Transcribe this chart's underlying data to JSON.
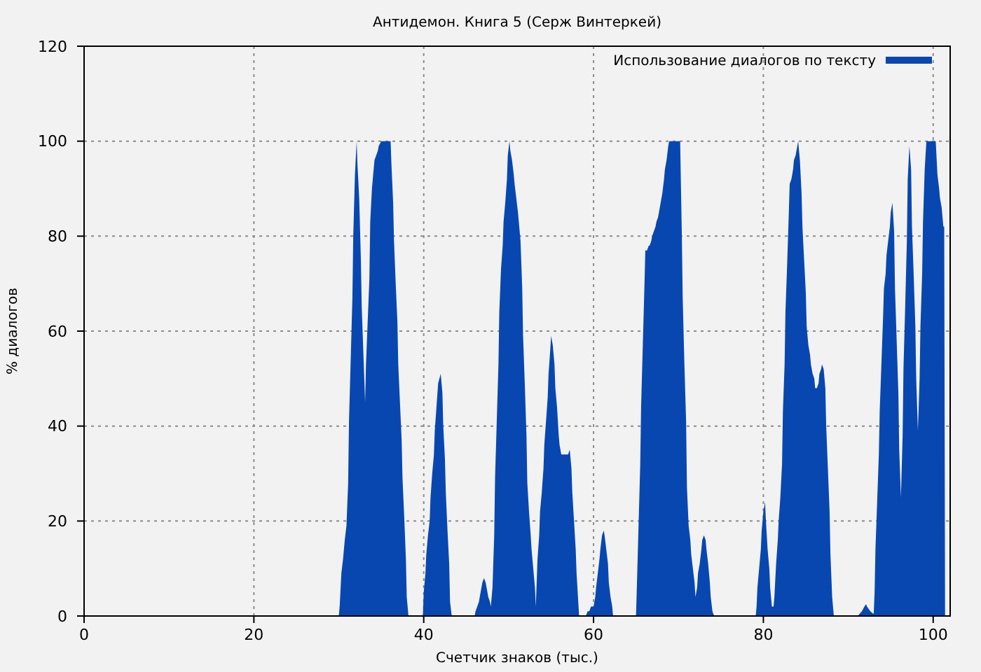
{
  "chart_data": {
    "type": "area",
    "title": "Антидемон. Книга 5 (Серж Винтеркей)",
    "xlabel": "Счетчик знаков (тыс.)",
    "ylabel": "% диалогов",
    "xlim": [
      0,
      102
    ],
    "ylim": [
      0,
      120
    ],
    "xticks": [
      0,
      20,
      40,
      60,
      80,
      100
    ],
    "yticks": [
      0,
      20,
      40,
      60,
      80,
      100,
      120
    ],
    "grid": true,
    "legend": "top right",
    "series": [
      {
        "name": "Использование диалогов по тексту",
        "color": "#0847af",
        "x": [
          30.0,
          30.1,
          30.3,
          30.5,
          30.7,
          30.9,
          31.1,
          31.2,
          31.4,
          31.6,
          31.7,
          31.9,
          32.1,
          32.2,
          32.4,
          32.6,
          32.7,
          32.9,
          33.1,
          33.2,
          33.4,
          33.6,
          33.7,
          33.9,
          34.1,
          34.2,
          34.4,
          34.6,
          34.7,
          35.0,
          36.1,
          36.2,
          36.4,
          36.5,
          36.7,
          36.9,
          37.0,
          37.2,
          37.4,
          37.5,
          37.7,
          37.9,
          38.0,
          38.2,
          39.9,
          40.0,
          40.2,
          40.3,
          40.5,
          40.7,
          40.8,
          41.0,
          41.2,
          41.3,
          41.5,
          41.7,
          42.0,
          42.2,
          42.3,
          42.5,
          42.6,
          42.8,
          43.0,
          43.1,
          43.3,
          46.0,
          46.1,
          46.3,
          46.5,
          46.6,
          46.8,
          46.9,
          47.1,
          47.3,
          47.4,
          47.6,
          47.8,
          47.9,
          48.1,
          48.3,
          48.4,
          48.6,
          48.8,
          48.9,
          49.1,
          49.3,
          49.4,
          49.6,
          49.8,
          49.9,
          50.1,
          50.2,
          50.4,
          50.6,
          50.7,
          50.9,
          51.1,
          51.2,
          51.4,
          51.6,
          51.7,
          51.9,
          52.1,
          52.2,
          52.4,
          52.6,
          52.7,
          52.9,
          53.1,
          53.2,
          53.4,
          53.6,
          53.7,
          53.9,
          54.1,
          54.2,
          54.4,
          54.6,
          54.7,
          54.9,
          55.0,
          55.2,
          55.4,
          55.5,
          55.7,
          55.9,
          56.0,
          56.2,
          57.0,
          57.2,
          57.4,
          57.5,
          57.7,
          57.9,
          58.0,
          58.2,
          58.3,
          59.1,
          59.3,
          59.5,
          59.7,
          60.0,
          60.2,
          60.3,
          60.5,
          60.7,
          60.8,
          61.0,
          61.2,
          61.3,
          61.5,
          61.7,
          61.8,
          62.0,
          62.2,
          62.3,
          65.0,
          65.1,
          65.3,
          65.5,
          65.6,
          65.8,
          66.0,
          66.1,
          66.3,
          66.5,
          66.6,
          66.8,
          66.9,
          67.1,
          67.3,
          67.4,
          67.6,
          67.8,
          67.9,
          68.1,
          68.3,
          68.4,
          68.6,
          68.8,
          68.9,
          70.2,
          70.4,
          70.5,
          70.7,
          70.9,
          71.0,
          71.2,
          71.4,
          71.5,
          71.7,
          71.9,
          72.0,
          72.2,
          72.3,
          72.5,
          72.7,
          72.8,
          73.0,
          73.2,
          73.3,
          73.5,
          73.7,
          73.8,
          74.0,
          74.2,
          79.1,
          79.2,
          79.3,
          79.5,
          79.7,
          79.8,
          80.0,
          80.2,
          80.3,
          80.5,
          80.7,
          80.8,
          81.0,
          81.2,
          81.3,
          81.5,
          81.7,
          81.8,
          82.0,
          82.2,
          82.3,
          82.5,
          82.6,
          82.8,
          83.0,
          83.1,
          83.3,
          83.5,
          83.6,
          83.8,
          84.0,
          84.1,
          84.3,
          84.5,
          84.6,
          84.8,
          85.0,
          85.1,
          85.3,
          85.5,
          85.6,
          85.8,
          86.0,
          86.1,
          86.3,
          86.5,
          86.6,
          86.8,
          86.9,
          87.1,
          87.3,
          87.4,
          87.6,
          87.8,
          87.9,
          88.1,
          88.3,
          91.1,
          91.2,
          91.6,
          91.9,
          92.1,
          92.2,
          92.6,
          92.9,
          93.0,
          93.1,
          93.2,
          93.4,
          93.6,
          93.7,
          93.9,
          94.1,
          94.2,
          94.4,
          94.5,
          94.7,
          94.9,
          95.0,
          95.2,
          95.4,
          95.5,
          95.7,
          95.9,
          96.0,
          96.2,
          96.4,
          96.5,
          96.7,
          96.9,
          97.0,
          97.2,
          97.4,
          97.5,
          97.7,
          97.9,
          98.0,
          98.2,
          98.4,
          98.5,
          98.7,
          98.8,
          99.0,
          99.2,
          100.3,
          100.5,
          100.7,
          100.8,
          101.0,
          101.2,
          101.3,
          101.4
        ],
        "values": [
          0,
          2,
          9,
          12,
          16,
          19,
          28,
          41,
          54,
          67,
          80,
          93,
          100,
          95,
          88,
          75,
          65,
          55,
          45,
          53,
          62,
          71,
          83,
          90,
          94,
          96,
          97,
          98,
          99,
          100,
          100,
          95,
          87,
          79,
          70,
          62,
          53,
          45,
          37,
          29,
          21,
          12,
          4,
          0,
          0,
          5,
          9,
          13,
          17,
          20,
          25,
          30,
          34,
          39,
          44,
          49,
          51,
          47,
          40,
          33,
          26,
          18,
          11,
          3,
          0,
          0,
          1,
          2,
          3,
          4,
          6,
          7,
          8,
          7,
          6,
          4,
          3,
          2,
          6,
          17,
          29,
          41,
          53,
          64,
          73,
          78,
          83,
          87,
          92,
          97,
          100,
          98,
          96,
          93,
          91,
          88,
          85,
          83,
          79,
          69,
          59,
          49,
          38,
          28,
          22,
          17,
          14,
          10,
          6,
          2,
          12,
          17,
          22,
          26,
          31,
          36,
          41,
          46,
          51,
          56,
          59,
          57,
          53,
          48,
          44,
          38,
          36,
          34,
          34,
          35,
          31,
          26,
          20,
          14,
          9,
          3,
          0,
          0,
          1,
          1,
          2,
          2,
          4,
          6,
          9,
          12,
          14,
          17,
          18,
          17,
          14,
          11,
          7,
          4,
          2,
          0,
          0,
          6,
          19,
          32,
          44,
          57,
          70,
          77,
          77,
          78,
          78,
          79,
          80,
          81,
          82,
          83,
          84,
          86,
          87,
          89,
          92,
          94,
          96,
          99,
          100,
          100,
          80,
          67,
          53,
          41,
          27,
          19,
          16,
          13,
          10,
          7,
          4,
          6,
          9,
          11,
          14,
          16,
          17,
          16,
          14,
          11,
          7,
          4,
          1,
          0,
          0,
          2,
          6,
          10,
          14,
          18,
          22,
          24,
          20,
          14,
          10,
          6,
          2,
          2,
          4,
          11,
          16,
          20,
          25,
          32,
          43,
          53,
          64,
          74,
          85,
          91,
          92,
          94,
          96,
          97,
          99,
          100,
          96,
          89,
          82,
          75,
          68,
          61,
          57,
          55,
          53,
          51,
          50,
          48,
          48,
          49,
          51,
          52,
          53,
          52,
          48,
          40,
          31,
          22,
          13,
          4,
          0,
          0,
          0.2,
          1,
          2,
          2.5,
          2,
          1,
          0.5,
          0.5,
          5,
          14,
          24,
          34,
          43,
          53,
          63,
          69,
          72,
          76,
          79,
          82,
          85,
          87,
          81,
          69,
          58,
          47,
          35,
          25,
          38,
          52,
          65,
          79,
          92,
          99,
          94,
          82,
          72,
          61,
          50,
          39,
          50,
          61,
          72,
          83,
          94,
          100,
          100,
          93,
          90,
          88,
          86,
          82,
          82,
          0
        ]
      }
    ]
  }
}
